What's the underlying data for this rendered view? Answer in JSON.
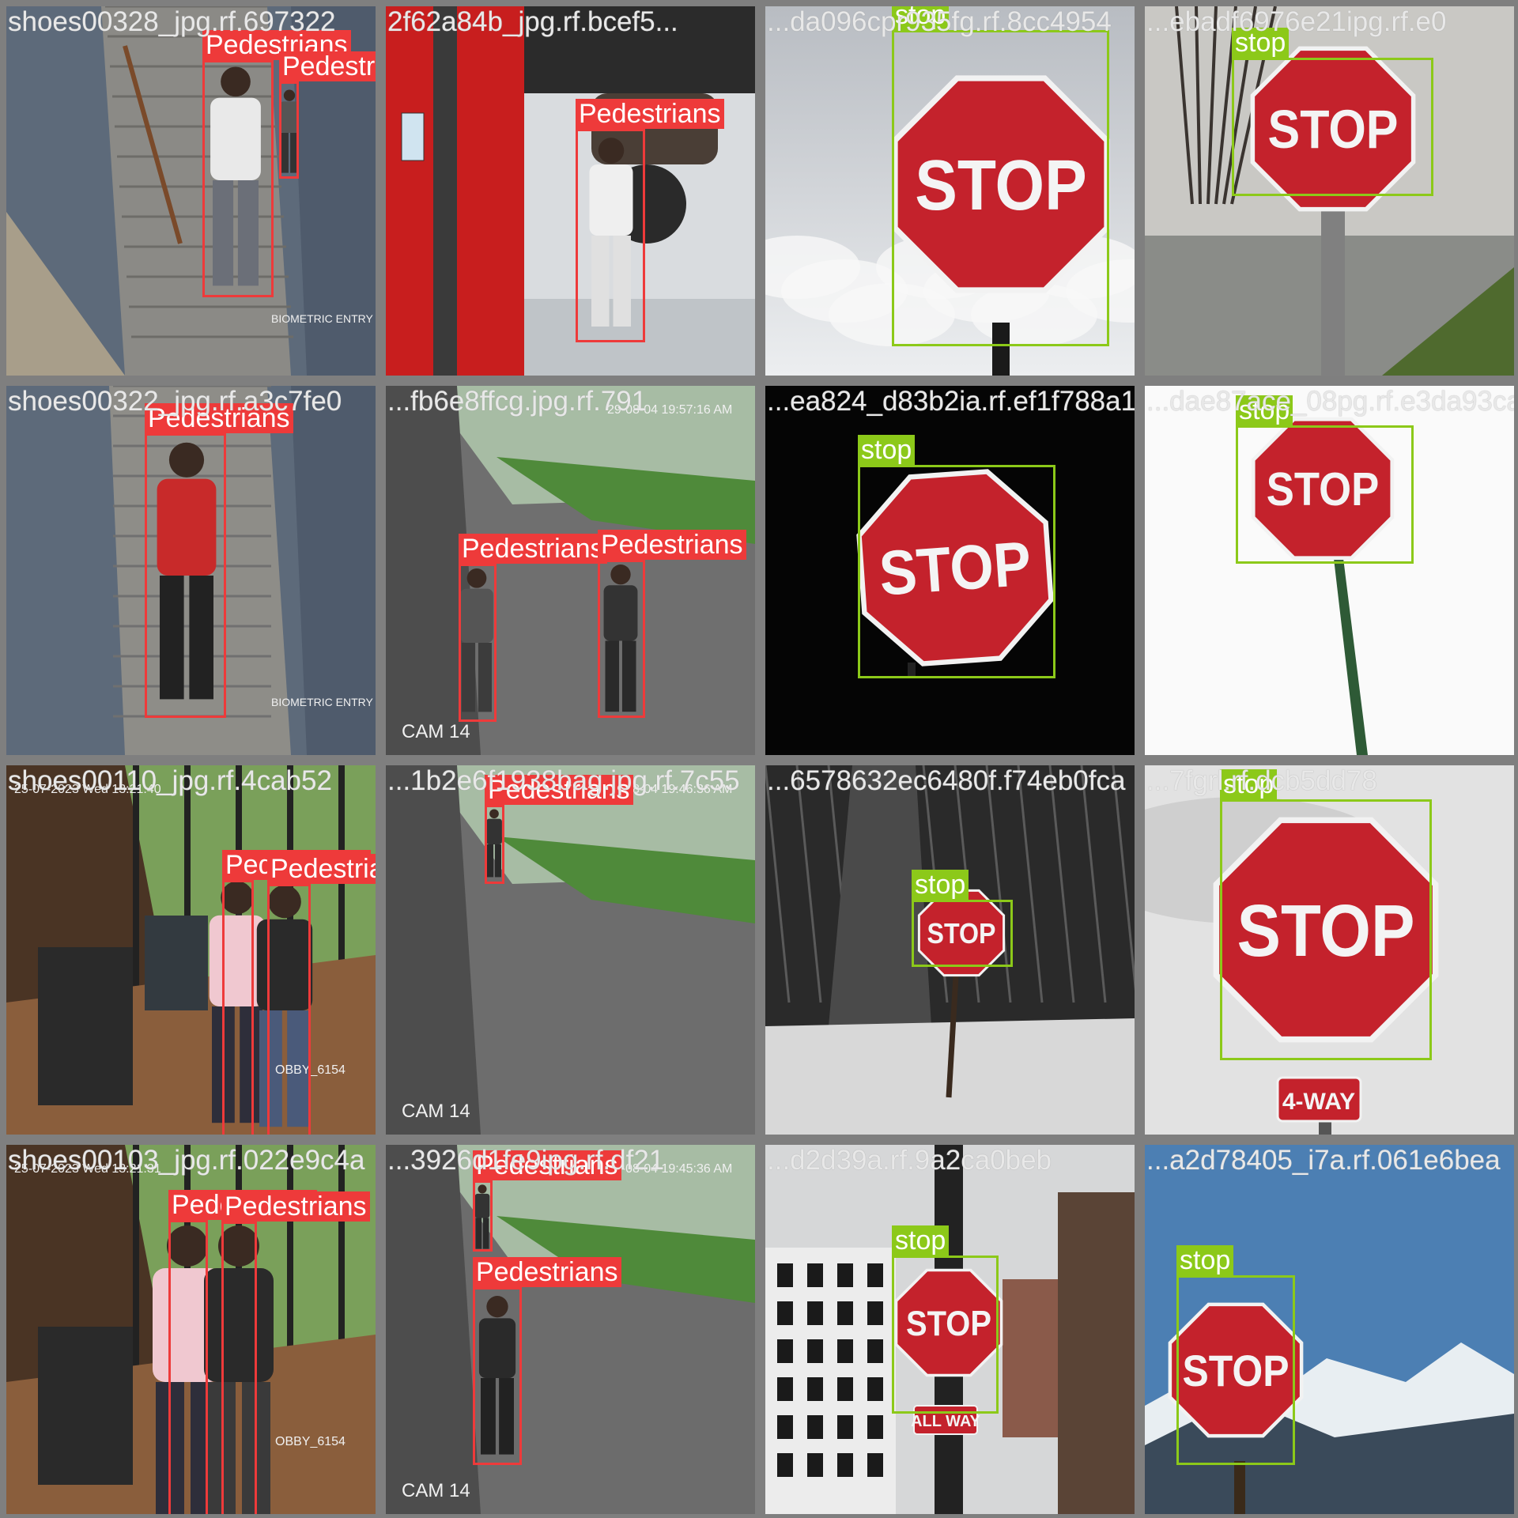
{
  "tiles": [
    {
      "file": "shoes00328_jpg.rf.697322",
      "scene": "stairs",
      "overlay": "BIOMETRIC ENTRY",
      "detections": [
        {
          "label": "Pedestrians"
        },
        {
          "label": "Pedestrians"
        }
      ]
    },
    {
      "file": "2f62a84b_jpg.rf.bcef5...",
      "scene": "garage",
      "detections": [
        {
          "label": "Pedestrians"
        }
      ]
    },
    {
      "file": "...da096cpr935fg.rf.8cc4954",
      "scene": "sky",
      "detections": [
        {
          "label": "stop"
        }
      ]
    },
    {
      "file": "...ebadf6976e21ipg.rf.e0",
      "scene": "winter",
      "detections": [
        {
          "label": "stop"
        }
      ]
    },
    {
      "file": "shoes00322_jpg.rf.a3c7fe0",
      "scene": "stairs2",
      "overlay": "BIOMETRIC ENTRY",
      "detections": [
        {
          "label": "Pedestrians"
        }
      ]
    },
    {
      "file": "...fb6e8ffcg.jpg.rf.791",
      "scene": "yard",
      "overlay": "CAM 14",
      "timestamp": "29-08-04 19:57:16 AM",
      "detections": [
        {
          "label": "Pedestrians"
        },
        {
          "label": "Pedestrians"
        }
      ]
    },
    {
      "file": "...ea824_d83b2ia.rf.ef1f788a1",
      "scene": "black",
      "detections": [
        {
          "label": "stop"
        }
      ]
    },
    {
      "file": "...dae87ace_08pg.rf.e3da93ca",
      "scene": "white",
      "detections": [
        {
          "label": "stop"
        }
      ]
    },
    {
      "file": "shoes00110_jpg.rf.4cab52",
      "scene": "lobby",
      "overlay": "OBBY_6154",
      "timestamp": "25-07-2023 Wed 13:21:40",
      "detections": [
        {
          "label": "Pedestrians"
        },
        {
          "label": "Pedestrians"
        }
      ]
    },
    {
      "file": "...1b2e6f1938bag.jpg.rf.7c55",
      "scene": "yard2",
      "overlay": "CAM 14",
      "timestamp": "29-08-04 19:46:36 AM",
      "detections": [
        {
          "label": "Pedestrians"
        }
      ]
    },
    {
      "file": "...6578632ec6480f.f74eb0fca",
      "scene": "forest",
      "detections": [
        {
          "label": "stop"
        }
      ]
    },
    {
      "file": "...7fgrl.rf.dcb5dd78",
      "scene": "foggy",
      "overlay": "4-WAY",
      "detections": [
        {
          "label": "stop"
        }
      ]
    },
    {
      "file": "shoes00103_jpg.rf.022e9c4a",
      "scene": "lobby2",
      "overlay": "OBBY_6154",
      "timestamp": "25-07-2023 Wed 13:21:31",
      "detections": [
        {
          "label": "Pedestrians"
        },
        {
          "label": "Pedestrians"
        }
      ]
    },
    {
      "file": "...3926d1fe9ipg.rf.df21",
      "scene": "yard3",
      "overlay": "CAM 14",
      "timestamp": "29-08-04 19:45:36 AM",
      "detections": [
        {
          "label": "Pedestrians"
        },
        {
          "label": "Pedestrians"
        }
      ]
    },
    {
      "file": "...d2d39a.rf.9a2ca0beb",
      "scene": "city",
      "overlay": "ALL WAY",
      "detections": [
        {
          "label": "stop"
        }
      ]
    },
    {
      "file": "...a2d78405_i7a.rf.061e6bea",
      "scene": "mountain",
      "detections": [
        {
          "label": "stop"
        }
      ]
    }
  ],
  "sign_text": "STOP",
  "colors": {
    "pedestrians": "#ee3a3a",
    "stop": "#8cc919",
    "background": "#7f7f7f"
  }
}
